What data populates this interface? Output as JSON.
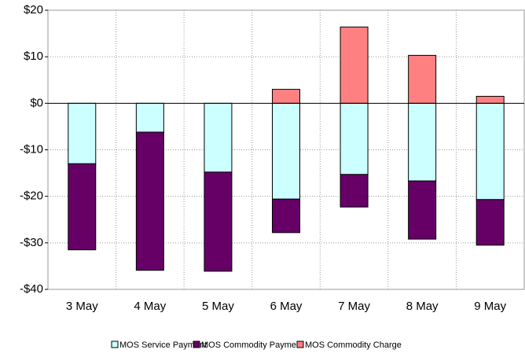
{
  "chart_data": {
    "type": "bar",
    "stacked": true,
    "categories": [
      "3 May",
      "4 May",
      "5 May",
      "6 May",
      "7 May",
      "8 May",
      "9 May"
    ],
    "series": [
      {
        "name": "MOS Service Payment",
        "color": "#ccffff",
        "values": [
          -13.0,
          -6.2,
          -14.8,
          -20.6,
          -15.3,
          -16.7,
          -20.7
        ]
      },
      {
        "name": "MOS Commodity Payment",
        "color": "#660066",
        "values": [
          -18.5,
          -29.7,
          -21.3,
          -7.2,
          -7.0,
          -12.5,
          -9.8
        ]
      },
      {
        "name": "MOS Commodity Charge",
        "color": "#ff8080",
        "values": [
          0,
          0,
          0,
          3.0,
          16.4,
          10.3,
          1.5
        ]
      }
    ],
    "ylim": [
      -40,
      20
    ],
    "yticks": [
      {
        "value": -40,
        "label": "-$40"
      },
      {
        "value": -30,
        "label": "-$30"
      },
      {
        "value": -20,
        "label": "-$20"
      },
      {
        "value": -10,
        "label": "-$10"
      },
      {
        "value": 0,
        "label": "$0"
      },
      {
        "value": 10,
        "label": "$10"
      },
      {
        "value": 20,
        "label": "$20"
      }
    ],
    "grid": true,
    "legend": "bottom"
  }
}
